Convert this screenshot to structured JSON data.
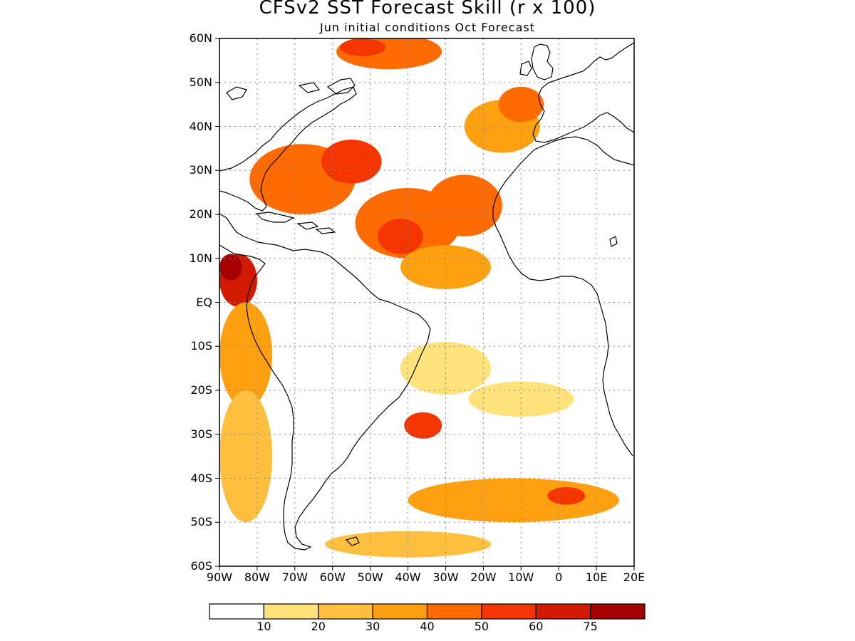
{
  "title": "CFSv2 SST Forecast Skill (r x 100)",
  "subtitle": "Jun initial conditions  Oct Forecast",
  "map": {
    "lon_range": [
      -90,
      20
    ],
    "lat_range": [
      -60,
      60
    ],
    "grid": true,
    "lat_ticks": [
      {
        "value": 60,
        "label": "60N"
      },
      {
        "value": 50,
        "label": "50N"
      },
      {
        "value": 40,
        "label": "40N"
      },
      {
        "value": 30,
        "label": "30N"
      },
      {
        "value": 20,
        "label": "20N"
      },
      {
        "value": 10,
        "label": "10N"
      },
      {
        "value": 0,
        "label": "EQ"
      },
      {
        "value": -10,
        "label": "10S"
      },
      {
        "value": -20,
        "label": "20S"
      },
      {
        "value": -30,
        "label": "30S"
      },
      {
        "value": -40,
        "label": "40S"
      },
      {
        "value": -50,
        "label": "50S"
      },
      {
        "value": -60,
        "label": "60S"
      }
    ],
    "lon_ticks": [
      {
        "value": -90,
        "label": "90W"
      },
      {
        "value": -80,
        "label": "80W"
      },
      {
        "value": -70,
        "label": "70W"
      },
      {
        "value": -60,
        "label": "60W"
      },
      {
        "value": -50,
        "label": "50W"
      },
      {
        "value": -40,
        "label": "40W"
      },
      {
        "value": -30,
        "label": "30W"
      },
      {
        "value": -20,
        "label": "20W"
      },
      {
        "value": -10,
        "label": "10W"
      },
      {
        "value": 0,
        "label": "0"
      },
      {
        "value": 10,
        "label": "10E"
      },
      {
        "value": 20,
        "label": "20E"
      }
    ]
  },
  "colorbar": {
    "colors": [
      "#ffffff",
      "#ffe27a",
      "#ffbf3f",
      "#ffa010",
      "#ff6b00",
      "#f53500",
      "#d11a00",
      "#a50000"
    ],
    "labels": [
      "10",
      "20",
      "30",
      "40",
      "50",
      "60",
      "75"
    ]
  },
  "skill_regions": [
    {
      "lon": -68,
      "lat": 28,
      "rx": 14,
      "ry": 8,
      "level": 4
    },
    {
      "lon": -55,
      "lat": 32,
      "rx": 8,
      "ry": 5,
      "level": 5
    },
    {
      "lon": -40,
      "lat": 18,
      "rx": 14,
      "ry": 8,
      "level": 4
    },
    {
      "lon": -42,
      "lat": 15,
      "rx": 6,
      "ry": 4,
      "level": 5
    },
    {
      "lon": -25,
      "lat": 22,
      "rx": 10,
      "ry": 7,
      "level": 4
    },
    {
      "lon": -30,
      "lat": 8,
      "rx": 12,
      "ry": 5,
      "level": 3
    },
    {
      "lon": -15,
      "lat": 40,
      "rx": 10,
      "ry": 6,
      "level": 3
    },
    {
      "lon": -10,
      "lat": 45,
      "rx": 6,
      "ry": 4,
      "level": 4
    },
    {
      "lon": -45,
      "lat": 57,
      "rx": 14,
      "ry": 4,
      "level": 4
    },
    {
      "lon": -52,
      "lat": 58,
      "rx": 6,
      "ry": 2,
      "level": 5
    },
    {
      "lon": -85,
      "lat": 5,
      "rx": 5,
      "ry": 6,
      "level": 6
    },
    {
      "lon": -87,
      "lat": 8,
      "rx": 3,
      "ry": 3,
      "level": 7
    },
    {
      "lon": -83,
      "lat": -12,
      "rx": 7,
      "ry": 12,
      "level": 3
    },
    {
      "lon": -83,
      "lat": -35,
      "rx": 7,
      "ry": 15,
      "level": 2
    },
    {
      "lon": -36,
      "lat": -28,
      "rx": 5,
      "ry": 3,
      "level": 5
    },
    {
      "lon": -30,
      "lat": -15,
      "rx": 12,
      "ry": 6,
      "level": 1
    },
    {
      "lon": -10,
      "lat": -22,
      "rx": 14,
      "ry": 4,
      "level": 1
    },
    {
      "lon": -12,
      "lat": -45,
      "rx": 28,
      "ry": 5,
      "level": 3
    },
    {
      "lon": 2,
      "lat": -44,
      "rx": 5,
      "ry": 2,
      "level": 5
    },
    {
      "lon": -40,
      "lat": -55,
      "rx": 22,
      "ry": 3,
      "level": 2
    }
  ]
}
